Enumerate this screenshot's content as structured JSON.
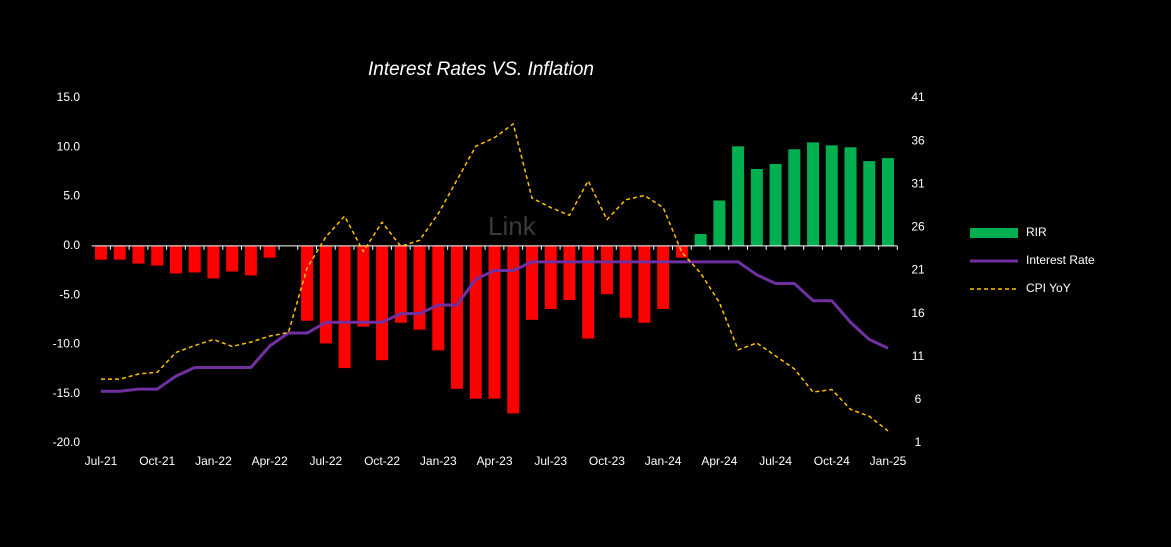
{
  "chart_data": {
    "type": "bar_line",
    "title": "Interest Rates VS. Inflation",
    "watermark": "Link",
    "categories": [
      "Jul-21",
      null,
      null,
      "Oct-21",
      null,
      null,
      "Jan-22",
      null,
      null,
      "Apr-22",
      null,
      null,
      "Jul-22",
      null,
      null,
      "Oct-22",
      null,
      null,
      "Jan-23",
      null,
      null,
      "Apr-23",
      null,
      null,
      "Jul-23",
      null,
      null,
      "Oct-23",
      null,
      null,
      "Jan-24",
      null,
      null,
      "Apr-24",
      null,
      null,
      "Jul-24",
      null,
      null,
      "Oct-24",
      null,
      null,
      "Jan-25"
    ],
    "series": [
      {
        "name": "RIR",
        "type": "bar",
        "axis": "y",
        "color": "#00b050",
        "negative_color": "#ff0000",
        "values": [
          -1.4,
          -1.4,
          -1.8,
          -2.0,
          -2.8,
          -2.7,
          -3.3,
          -2.6,
          -3.0,
          -1.2,
          0,
          -7.6,
          -9.9,
          -12.4,
          -8.2,
          -11.6,
          -7.8,
          -8.5,
          -10.6,
          -14.5,
          -15.5,
          -15.5,
          -17.0,
          -7.5,
          -6.4,
          -5.5,
          -9.4,
          -4.9,
          -7.3,
          -7.8,
          -6.4,
          -1.2,
          1.2,
          4.6,
          10.1,
          7.8,
          8.3,
          9.8,
          10.5,
          10.2,
          10.0,
          8.6,
          8.9
        ]
      },
      {
        "name": "Interest Rate",
        "type": "line",
        "axis": "y2",
        "color": "#7030a0",
        "dashed": false,
        "values": [
          7,
          7,
          7.25,
          7.25,
          8.75,
          9.75,
          9.75,
          9.75,
          9.75,
          12.25,
          13.75,
          13.75,
          15,
          15,
          15,
          15,
          16,
          16,
          17,
          17,
          20,
          21,
          21,
          22,
          22,
          22,
          22,
          22,
          22,
          22,
          22,
          22,
          22,
          22,
          22,
          20.5,
          19.5,
          19.5,
          17.5,
          17.5,
          15,
          13,
          12
        ]
      },
      {
        "name": "CPI YoY",
        "type": "line",
        "axis": "y2",
        "color": "#ffc000",
        "dashed": true,
        "values": [
          8.4,
          8.4,
          9.0,
          9.2,
          11.5,
          12.3,
          13.0,
          12.2,
          12.7,
          13.4,
          13.8,
          21.3,
          24.9,
          27.3,
          23.2,
          26.6,
          23.8,
          24.5,
          27.6,
          31.5,
          35.4,
          36.4,
          38.0,
          29.4,
          28.3,
          27.4,
          31.4,
          26.9,
          29.2,
          29.7,
          28.3,
          23.1,
          20.7,
          17.3,
          11.8,
          12.6,
          11.1,
          9.6,
          6.9,
          7.2,
          4.9,
          4.1,
          2.4
        ]
      }
    ],
    "ylim": [
      -20,
      15
    ],
    "yticks": [
      {
        "value": -20,
        "label": "-20.0"
      },
      {
        "value": -15,
        "label": "-15.0"
      },
      {
        "value": -10,
        "label": "-10.0"
      },
      {
        "value": -5,
        "label": "-5.0"
      },
      {
        "value": 0,
        "label": "0.0"
      },
      {
        "value": 5,
        "label": "5.0"
      },
      {
        "value": 10,
        "label": "10.0"
      },
      {
        "value": 15,
        "label": "15.0"
      }
    ],
    "y2lim": [
      1,
      41
    ],
    "y2ticks": [
      1,
      6,
      11,
      16,
      21,
      26,
      31,
      36,
      41
    ],
    "grid": false,
    "legend": "right"
  }
}
